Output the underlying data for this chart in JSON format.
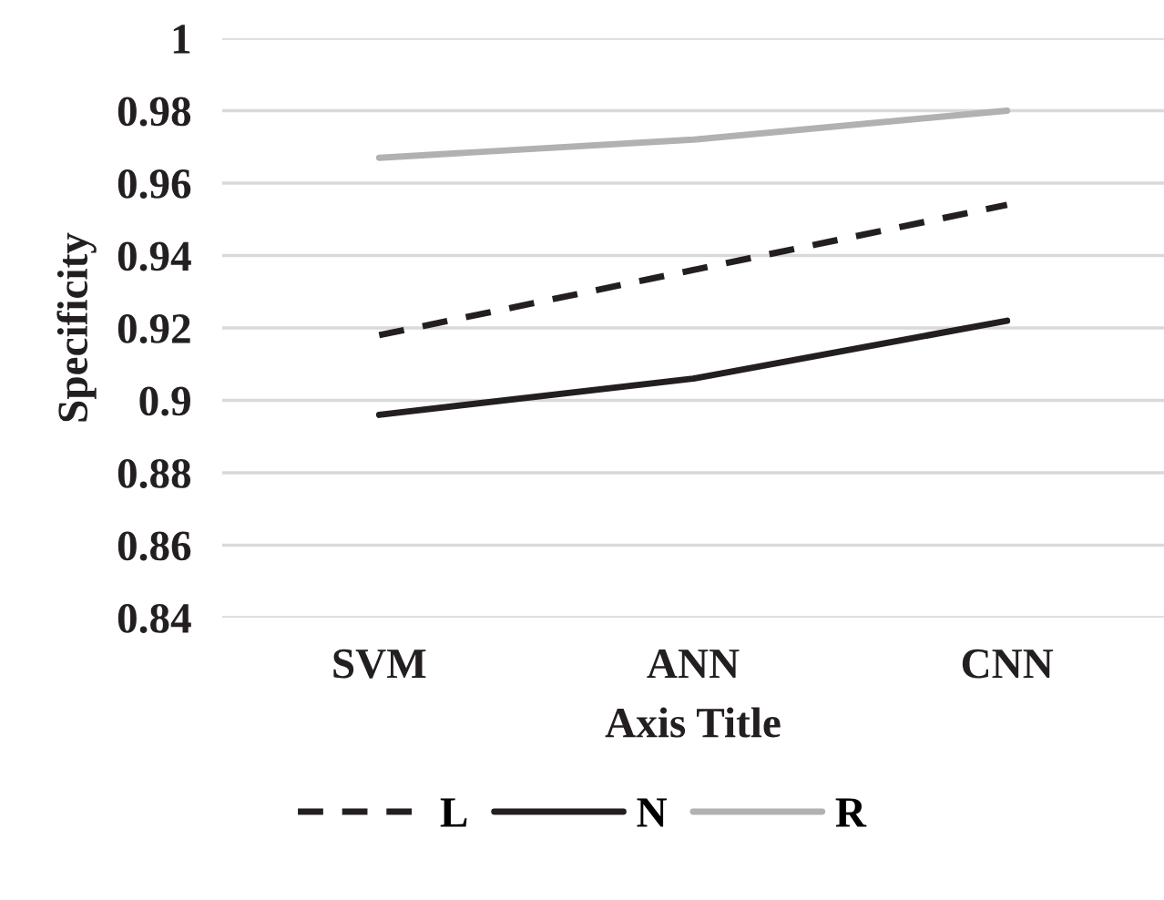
{
  "chart_data": {
    "type": "line",
    "xlabel": "Axis Title",
    "ylabel": "Specificity",
    "categories": [
      "SVM",
      "ANN",
      "CNN"
    ],
    "series": [
      {
        "name": "L",
        "color": "#231f20",
        "line_style": "dashed",
        "values": [
          0.918,
          0.936,
          0.954
        ]
      },
      {
        "name": "N",
        "color": "#231f20",
        "line_style": "solid",
        "values": [
          0.896,
          0.906,
          0.922
        ]
      },
      {
        "name": "R",
        "color": "#b1b1b3",
        "line_style": "solid",
        "values": [
          0.967,
          0.972,
          0.98
        ]
      }
    ],
    "ylim": [
      0.84,
      1
    ],
    "yticks": [
      0.84,
      0.86,
      0.88,
      0.9,
      0.92,
      0.94,
      0.96,
      0.98,
      1
    ],
    "grid": "y",
    "legend": "bottom",
    "marker": "none"
  }
}
